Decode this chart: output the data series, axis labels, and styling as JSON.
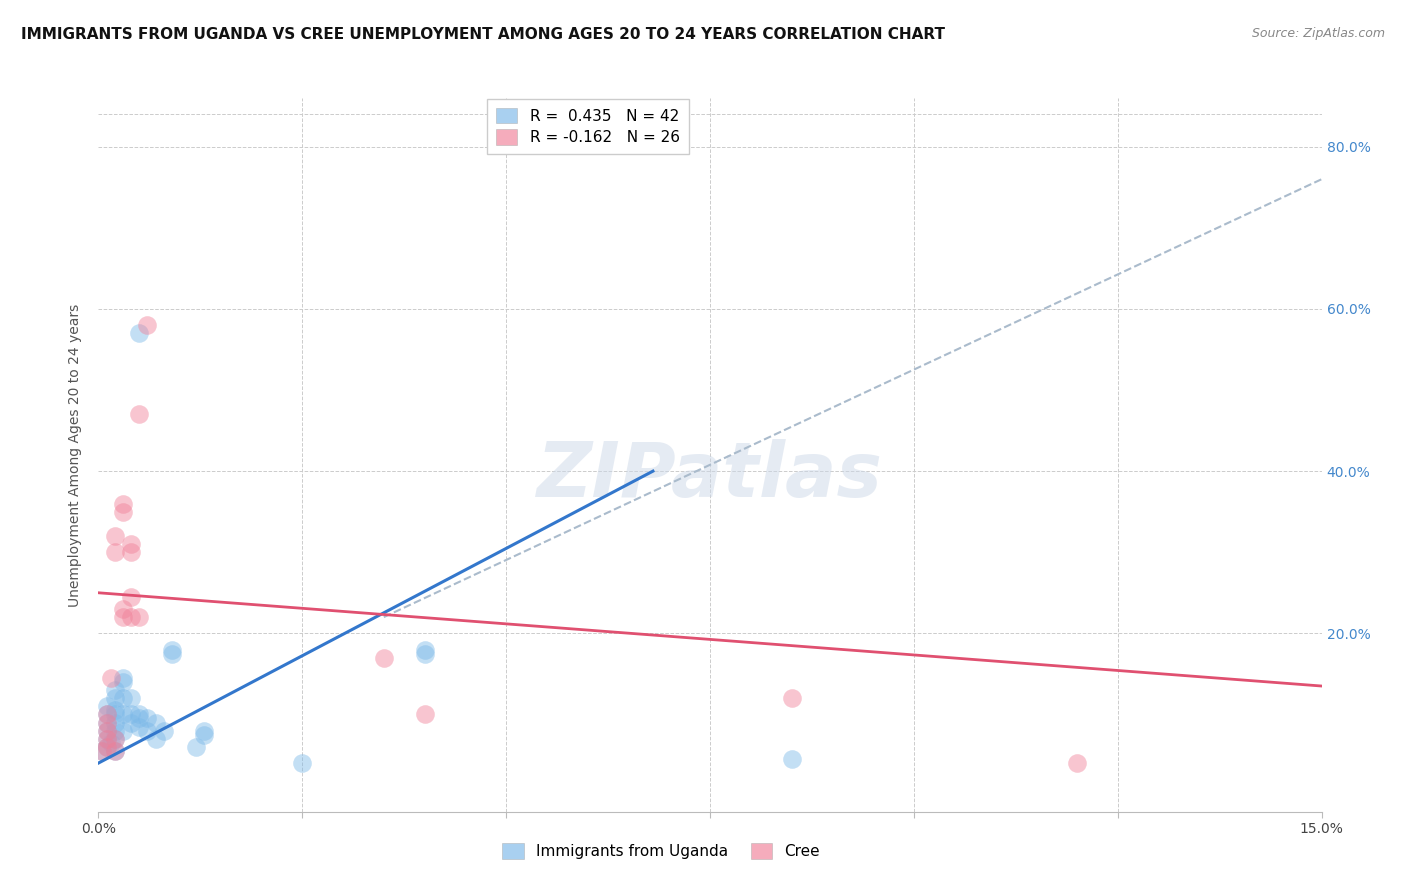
{
  "title": "IMMIGRANTS FROM UGANDA VS CREE UNEMPLOYMENT AMONG AGES 20 TO 24 YEARS CORRELATION CHART",
  "source": "Source: ZipAtlas.com",
  "ylabel": "Unemployment Among Ages 20 to 24 years",
  "xlim": [
    0,
    0.15
  ],
  "ylim": [
    -0.02,
    0.86
  ],
  "ytick_vals": [
    0.0,
    0.2,
    0.4,
    0.6,
    0.8
  ],
  "ytick_labels_right": [
    "",
    "20.0%",
    "40.0%",
    "60.0%",
    "80.0%"
  ],
  "xtick_vals": [
    0.0,
    0.025,
    0.05,
    0.075,
    0.1,
    0.125,
    0.15
  ],
  "xtick_labels": [
    "0.0%",
    "",
    "",
    "",
    "",
    "",
    "15.0%"
  ],
  "legend_entries": [
    {
      "label": "R =  0.435   N = 42",
      "color": "#a8c8f0"
    },
    {
      "label": "R = -0.162   N = 26",
      "color": "#f4a8b8"
    }
  ],
  "legend_bottom": [
    {
      "label": "Immigrants from Uganda",
      "color": "#a8c8f0"
    },
    {
      "label": "Cree",
      "color": "#f4a8b8"
    }
  ],
  "blue_scatter": [
    [
      0.0005,
      0.055
    ],
    [
      0.001,
      0.06
    ],
    [
      0.001,
      0.07
    ],
    [
      0.001,
      0.08
    ],
    [
      0.001,
      0.09
    ],
    [
      0.001,
      0.1
    ],
    [
      0.001,
      0.11
    ],
    [
      0.0015,
      0.065
    ],
    [
      0.002,
      0.055
    ],
    [
      0.002,
      0.07
    ],
    [
      0.002,
      0.08
    ],
    [
      0.002,
      0.09
    ],
    [
      0.002,
      0.1
    ],
    [
      0.002,
      0.105
    ],
    [
      0.002,
      0.12
    ],
    [
      0.002,
      0.13
    ],
    [
      0.003,
      0.08
    ],
    [
      0.003,
      0.1
    ],
    [
      0.003,
      0.12
    ],
    [
      0.003,
      0.14
    ],
    [
      0.003,
      0.145
    ],
    [
      0.004,
      0.09
    ],
    [
      0.004,
      0.1
    ],
    [
      0.004,
      0.12
    ],
    [
      0.005,
      0.085
    ],
    [
      0.005,
      0.095
    ],
    [
      0.005,
      0.1
    ],
    [
      0.005,
      0.57
    ],
    [
      0.006,
      0.08
    ],
    [
      0.006,
      0.095
    ],
    [
      0.007,
      0.07
    ],
    [
      0.007,
      0.09
    ],
    [
      0.008,
      0.08
    ],
    [
      0.009,
      0.175
    ],
    [
      0.009,
      0.18
    ],
    [
      0.012,
      0.06
    ],
    [
      0.013,
      0.075
    ],
    [
      0.013,
      0.08
    ],
    [
      0.025,
      0.04
    ],
    [
      0.04,
      0.175
    ],
    [
      0.04,
      0.18
    ],
    [
      0.085,
      0.045
    ]
  ],
  "pink_scatter": [
    [
      0.0005,
      0.055
    ],
    [
      0.001,
      0.06
    ],
    [
      0.001,
      0.07
    ],
    [
      0.001,
      0.08
    ],
    [
      0.001,
      0.09
    ],
    [
      0.001,
      0.1
    ],
    [
      0.0015,
      0.145
    ],
    [
      0.002,
      0.055
    ],
    [
      0.002,
      0.07
    ],
    [
      0.002,
      0.3
    ],
    [
      0.002,
      0.32
    ],
    [
      0.003,
      0.22
    ],
    [
      0.003,
      0.23
    ],
    [
      0.003,
      0.35
    ],
    [
      0.003,
      0.36
    ],
    [
      0.004,
      0.22
    ],
    [
      0.004,
      0.245
    ],
    [
      0.004,
      0.3
    ],
    [
      0.004,
      0.31
    ],
    [
      0.005,
      0.22
    ],
    [
      0.005,
      0.47
    ],
    [
      0.006,
      0.58
    ],
    [
      0.035,
      0.17
    ],
    [
      0.04,
      0.1
    ],
    [
      0.085,
      0.12
    ],
    [
      0.12,
      0.04
    ]
  ],
  "blue_solid_line": {
    "x0": 0.0,
    "y0": 0.04,
    "x1": 0.068,
    "y1": 0.4
  },
  "blue_dashed_line": {
    "x0": 0.035,
    "y0": 0.22,
    "x1": 0.15,
    "y1": 0.76
  },
  "pink_line": {
    "x0": 0.0,
    "y0": 0.25,
    "x1": 0.15,
    "y1": 0.135
  },
  "watermark": "ZIPatlas",
  "background_color": "#ffffff",
  "grid_color": "#cccccc",
  "title_fontsize": 11,
  "tick_fontsize": 10,
  "scatter_size": 180,
  "scatter_alpha": 0.45,
  "blue_color": "#7bb8e8",
  "pink_color": "#f08098",
  "blue_line_color": "#3377cc",
  "pink_line_color": "#e05070",
  "dashed_color": "#aabbcc"
}
